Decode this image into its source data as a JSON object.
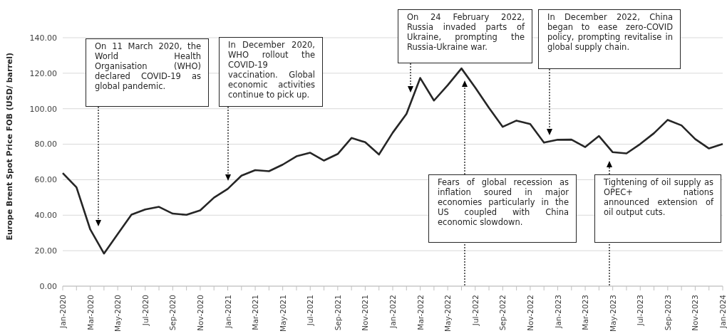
{
  "chart_data": {
    "type": "line",
    "ylabel": "Europe Brent Spot Price FOB (USD/ barrel)",
    "categories": [
      "Jan-2020",
      null,
      "Mar-2020",
      null,
      "May-2020",
      null,
      "Jul-2020",
      null,
      "Sep-2020",
      null,
      "Nov-2020",
      null,
      "Jan-2021",
      null,
      "Mar-2021",
      null,
      "May-2021",
      null,
      "Jul-2021",
      null,
      "Sep-2021",
      null,
      "Nov-2021",
      null,
      "Jan-2022",
      null,
      "Mar-2022",
      null,
      "May-2022",
      null,
      "Jul-2022",
      null,
      "Sep-2022",
      null,
      "Nov-2022",
      null,
      "Jan-2023",
      null,
      "Mar-2023",
      null,
      "May-2023",
      null,
      "Jul-2023",
      null,
      "Sep-2023",
      null,
      "Nov-2023",
      null,
      "Jan-2024"
    ],
    "series": [
      {
        "color": "#262626",
        "values": [
          63.7,
          55.7,
          32.0,
          18.4,
          29.4,
          40.3,
          43.2,
          44.7,
          40.9,
          40.2,
          42.7,
          49.9,
          54.8,
          62.3,
          65.4,
          64.8,
          68.5,
          73.2,
          75.2,
          70.8,
          74.5,
          83.5,
          81.1,
          74.2,
          86.5,
          97.1,
          117.3,
          104.6,
          113.3,
          122.7,
          111.9,
          100.5,
          89.8,
          93.3,
          91.4,
          80.9,
          82.5,
          82.6,
          78.4,
          84.6,
          75.5,
          74.8,
          80.1,
          86.2,
          93.7,
          90.6,
          82.9,
          77.6,
          80.1
        ]
      }
    ],
    "ylim": [
      0,
      140
    ],
    "yticks": [
      {
        "value": 0,
        "label": "0.00"
      },
      {
        "value": 20,
        "label": "20.00"
      },
      {
        "value": 40,
        "label": "40.00"
      },
      {
        "value": 60,
        "label": "60.00"
      },
      {
        "value": 80,
        "label": "80.00"
      },
      {
        "value": 100,
        "label": "100.00"
      },
      {
        "value": 120,
        "label": "120.00"
      },
      {
        "value": 140,
        "label": "140.00"
      }
    ],
    "grid": "y",
    "legend": false,
    "marker": "none",
    "line_style": "solid",
    "annotations": [
      "On 11 March 2020, the World Health Organisation (WHO) declared COVID-19 as global pandemic.",
      "In December 2020, WHO rollout the COVID-19 vaccination. Global economic activities continue to pick up.",
      "On 24 February 2022, Russia invaded parts of Ukraine, prompting the Russia-Ukraine war.",
      "Fears of global recession as inflation soured in major economies particularly in the US coupled with China economic slowdown.",
      "In December 2022, China began to ease zero-COVID policy, prompting revitalise in global supply chain.",
      "Tightening of oil supply as OPEC+ nations announced extension of oil output cuts."
    ]
  }
}
